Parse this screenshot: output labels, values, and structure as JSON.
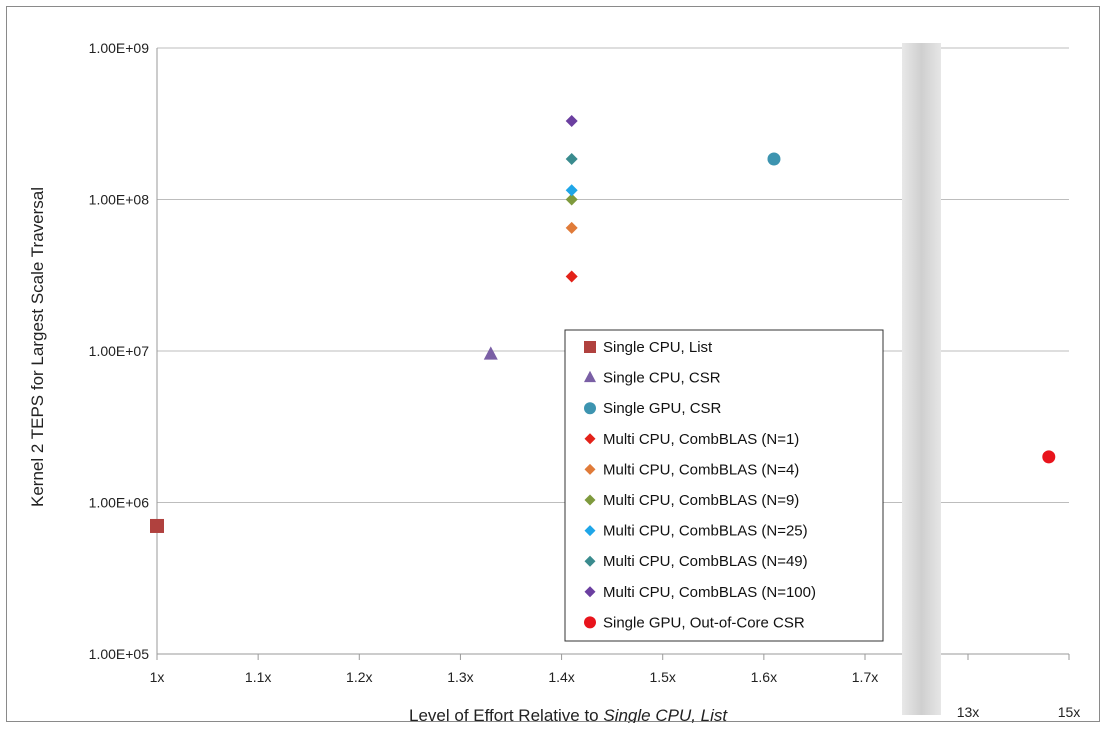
{
  "chart_data": {
    "type": "scatter",
    "title": "",
    "xlabel_prefix": "Level of Effort Relative to ",
    "xlabel_italic": "Single CPU, List",
    "ylabel": "Kernel 2 TEPS for Largest Scale Traversal",
    "y_scale": "log",
    "ylim": [
      100000,
      1000000000
    ],
    "y_ticks": [
      {
        "value": 100000,
        "label": "1.00E+05"
      },
      {
        "value": 1000000,
        "label": "1.00E+06"
      },
      {
        "value": 10000000,
        "label": "1.00E+07"
      },
      {
        "value": 100000000,
        "label": "1.00E+08"
      },
      {
        "value": 1000000000,
        "label": "1.00E+09"
      }
    ],
    "x_scale": "broken",
    "x_segments": [
      {
        "range": [
          1.0,
          1.7
        ],
        "ticks": [
          {
            "value": 1.0,
            "label": "1x"
          },
          {
            "value": 1.1,
            "label": "1.1x"
          },
          {
            "value": 1.2,
            "label": "1.2x"
          },
          {
            "value": 1.3,
            "label": "1.3x"
          },
          {
            "value": 1.4,
            "label": "1.4x"
          },
          {
            "value": 1.5,
            "label": "1.5x"
          },
          {
            "value": 1.6,
            "label": "1.6x"
          },
          {
            "value": 1.7,
            "label": "1.7x"
          }
        ]
      },
      {
        "range": [
          13,
          15
        ],
        "ticks": [
          {
            "value": 13,
            "label": "13x"
          },
          {
            "value": 15,
            "label": "15x"
          }
        ]
      }
    ],
    "grid": "horizontal",
    "legend_position": "center-right",
    "series": [
      {
        "name": "Single CPU, List",
        "marker": "square",
        "color": "#b0413e",
        "points": [
          {
            "x": 1.0,
            "y": 700000
          }
        ]
      },
      {
        "name": "Single CPU, CSR",
        "marker": "triangle",
        "color": "#7a5fa5",
        "points": [
          {
            "x": 1.33,
            "y": 9500000
          }
        ]
      },
      {
        "name": "Single GPU, CSR",
        "marker": "circle",
        "color": "#3d94b0",
        "points": [
          {
            "x": 1.61,
            "y": 185000000
          }
        ]
      },
      {
        "name": "Multi CPU, CombBLAS (N=1)",
        "marker": "diamond",
        "color": "#e32219",
        "points": [
          {
            "x": 1.41,
            "y": 31000000
          }
        ]
      },
      {
        "name": "Multi CPU, CombBLAS (N=4)",
        "marker": "diamond",
        "color": "#e07b39",
        "points": [
          {
            "x": 1.41,
            "y": 65000000
          }
        ]
      },
      {
        "name": "Multi CPU, CombBLAS (N=9)",
        "marker": "diamond",
        "color": "#7e9a3d",
        "points": [
          {
            "x": 1.41,
            "y": 100000000
          }
        ]
      },
      {
        "name": "Multi CPU, CombBLAS (N=25)",
        "marker": "diamond",
        "color": "#1fa6e8",
        "points": [
          {
            "x": 1.41,
            "y": 115000000
          }
        ]
      },
      {
        "name": "Multi CPU, CombBLAS (N=49)",
        "marker": "diamond",
        "color": "#3a8b8e",
        "points": [
          {
            "x": 1.41,
            "y": 185000000
          }
        ]
      },
      {
        "name": "Multi CPU, CombBLAS (N=100)",
        "marker": "diamond",
        "color": "#6b3fa0",
        "points": [
          {
            "x": 1.41,
            "y": 330000000
          }
        ]
      },
      {
        "name": "Single GPU, Out-of-Core CSR",
        "marker": "circle",
        "color": "#e8141c",
        "points": [
          {
            "x": 14.6,
            "y": 2000000
          }
        ]
      }
    ]
  }
}
